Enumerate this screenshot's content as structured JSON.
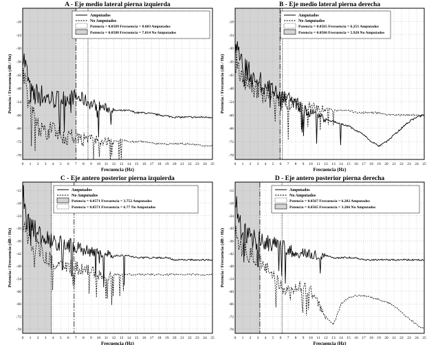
{
  "chart_data": [
    {
      "type": "line",
      "title": "A - Eje medio lateral pierna izquierda",
      "xlabel": "Frecuencia (Hz)",
      "ylabel": "Potencia / Frecuencia (dB / Hz)",
      "xlim": [
        0,
        25
      ],
      "ylim": [
        -80,
        -12
      ],
      "x_ticks": [
        0,
        1,
        2,
        3,
        4,
        5,
        6,
        7,
        8,
        9,
        10,
        11,
        12,
        13,
        14,
        15,
        16,
        17,
        18,
        19,
        20,
        21,
        22,
        23,
        24,
        25
      ],
      "y_ticks": [
        -18,
        -24,
        -30,
        -36,
        -42,
        -48,
        -54,
        -60,
        -66,
        -72,
        -78
      ],
      "legend": [
        "Amputados",
        "No Amputados"
      ],
      "annotations": [
        {
          "text": "Potencia = 0.0589   Frecuencia = 8.603 Amputados",
          "shade": false
        },
        {
          "text": "Potencia = 0.0588   Frecuencia = 7.014 No Amputados",
          "shade": true
        }
      ],
      "cutoff_lines": [
        {
          "x": 8.603,
          "group": "Amputados"
        },
        {
          "x": 7.014,
          "group": "No Amputados"
        }
      ],
      "series": [
        {
          "name": "Amputados",
          "style": "solid",
          "x": [
            0,
            0.5,
            1,
            1.5,
            2,
            3,
            4,
            5,
            6,
            7,
            8,
            9,
            10,
            11,
            12,
            13,
            14,
            15,
            16,
            18,
            20,
            22,
            24,
            25
          ],
          "y": [
            -32,
            -40,
            -50,
            -52,
            -50,
            -52,
            -53,
            -53,
            -52,
            -52,
            -53,
            -55,
            -56,
            -57,
            -58,
            -58,
            -58,
            -59,
            -59,
            -60,
            -61,
            -61,
            -61,
            -61
          ]
        },
        {
          "name": "No Amputados",
          "style": "dashed",
          "x": [
            0,
            0.5,
            1,
            1.5,
            2,
            3,
            4,
            5,
            6,
            7,
            8,
            9,
            10,
            11,
            12,
            13,
            14,
            15,
            16,
            18,
            20,
            22,
            24,
            25
          ],
          "y": [
            -40,
            -48,
            -58,
            -62,
            -64,
            -66,
            -68,
            -69,
            -70,
            -70,
            -71,
            -71,
            -72,
            -72,
            -72,
            -71,
            -72,
            -72,
            -72,
            -73,
            -73,
            -73,
            -74,
            -74
          ]
        }
      ]
    },
    {
      "type": "line",
      "title": "B - Eje medio lateral pierna derecha",
      "xlabel": "Frecuencia (Hz)",
      "ylabel": "Potencia / Frecuencia (dB / Hz)",
      "xlim": [
        0,
        25
      ],
      "ylim": [
        -80,
        -12
      ],
      "x_ticks": [
        0,
        1,
        2,
        3,
        4,
        5,
        6,
        7,
        8,
        9,
        10,
        11,
        12,
        13,
        14,
        15,
        16,
        17,
        18,
        19,
        20,
        21,
        22,
        23,
        24,
        25
      ],
      "y_ticks": [
        -18,
        -24,
        -30,
        -36,
        -42,
        -48,
        -54,
        -60,
        -66,
        -72,
        -78
      ],
      "legend": [
        "Amputados",
        "No Amputados"
      ],
      "annotations": [
        {
          "text": "Potencia = 0.0565   Frecuencia = 6.251 Amputados",
          "shade": false
        },
        {
          "text": "Potencia = 0.0566   Frecuencia = 5.928 No Amputados",
          "shade": true
        }
      ],
      "cutoff_lines": [
        {
          "x": 6.251,
          "group": "Amputados"
        },
        {
          "x": 5.928,
          "group": "No Amputados"
        }
      ],
      "series": [
        {
          "name": "Amputados",
          "style": "solid",
          "x": [
            0,
            0.5,
            1,
            2,
            3,
            4,
            5,
            6,
            7,
            8,
            9,
            10,
            11,
            12,
            13,
            14,
            15,
            16,
            17,
            18,
            19,
            20,
            21,
            22,
            23,
            24,
            25
          ],
          "y": [
            -28,
            -34,
            -38,
            -42,
            -44,
            -47,
            -50,
            -52,
            -53,
            -55,
            -57,
            -59,
            -61,
            -62,
            -63,
            -64,
            -65,
            -67,
            -69,
            -72,
            -74,
            -72,
            -69,
            -66,
            -63,
            -61,
            -60
          ]
        },
        {
          "name": "No Amputados",
          "style": "dashed",
          "x": [
            0,
            0.5,
            1,
            2,
            3,
            4,
            5,
            6,
            7,
            8,
            9,
            10,
            11,
            12,
            13,
            14,
            15,
            16,
            17,
            18,
            19,
            20,
            21,
            22,
            23,
            24,
            25
          ],
          "y": [
            -34,
            -40,
            -44,
            -47,
            -49,
            -51,
            -52,
            -53,
            -54,
            -55,
            -56,
            -56,
            -57,
            -57,
            -58,
            -58,
            -58,
            -59,
            -59,
            -59,
            -59,
            -60,
            -60,
            -60,
            -60,
            -60,
            -60
          ]
        }
      ]
    },
    {
      "type": "line",
      "title": "C - Eje antero posterior pierna izquierda",
      "xlabel": "Frecuencia (Hz)",
      "ylabel": "Potencia / Frecuencia (dB / Hz)",
      "xlim": [
        0,
        25
      ],
      "ylim": [
        -80,
        -8
      ],
      "x_ticks": [
        0,
        1,
        2,
        3,
        4,
        5,
        6,
        7,
        8,
        9,
        10,
        11,
        12,
        13,
        14,
        15,
        16,
        17,
        18,
        19,
        20,
        21,
        22,
        23,
        24,
        25
      ],
      "y_ticks": [
        -12,
        -18,
        -24,
        -30,
        -36,
        -42,
        -48,
        -54,
        -60,
        -66,
        -72,
        -78
      ],
      "legend": [
        "Amputados",
        "No Amputados"
      ],
      "annotations": [
        {
          "text": "Potencia = 0.0571   Frecuencia = 3.752 Amputados",
          "shade": true
        },
        {
          "text": "Potencia = 0.0571   Frecuencia = 6.77 No Amputados",
          "shade": false
        }
      ],
      "cutoff_lines": [
        {
          "x": 3.752,
          "group": "Amputados"
        },
        {
          "x": 6.77,
          "group": "No Amputados"
        }
      ],
      "series": [
        {
          "name": "Amputados",
          "style": "solid",
          "x": [
            0,
            0.3,
            0.6,
            1,
            2,
            3,
            4,
            5,
            6,
            7,
            8,
            9,
            10,
            11,
            12,
            13,
            14,
            15,
            16,
            17,
            18,
            19,
            20,
            21,
            22,
            23,
            24,
            25
          ],
          "y": [
            -12,
            -18,
            -26,
            -30,
            -32,
            -34,
            -36,
            -37,
            -38,
            -39,
            -40,
            -41,
            -42,
            -42,
            -43,
            -43,
            -43,
            -44,
            -44,
            -44,
            -44,
            -44,
            -45,
            -45,
            -45,
            -45,
            -45,
            -45
          ]
        },
        {
          "name": "No Amputados",
          "style": "dashed",
          "x": [
            0,
            0.3,
            0.6,
            1,
            2,
            3,
            4,
            5,
            6,
            7,
            8,
            9,
            10,
            11,
            12,
            13,
            14,
            15,
            16,
            17,
            18,
            19,
            20,
            21,
            22,
            23,
            24,
            25
          ],
          "y": [
            -26,
            -32,
            -36,
            -38,
            -40,
            -42,
            -45,
            -47,
            -48,
            -49,
            -50,
            -50,
            -52,
            -53,
            -52,
            -52,
            -52,
            -52,
            -52,
            -52,
            -52,
            -52,
            -52,
            -52,
            -52,
            -52,
            -52,
            -52
          ]
        }
      ]
    },
    {
      "type": "line",
      "title": "D - Eje antero posterior pierna derecha",
      "xlabel": "Frecuencia (Hz)",
      "ylabel": "Potencia / Frecuencia (dB / Hz)",
      "xlim": [
        0,
        25
      ],
      "ylim": [
        -80,
        -8
      ],
      "x_ticks": [
        0,
        1,
        2,
        3,
        4,
        5,
        6,
        7,
        8,
        9,
        10,
        11,
        12,
        13,
        14,
        15,
        16,
        17,
        18,
        19,
        20,
        21,
        22,
        23,
        24,
        25
      ],
      "y_ticks": [
        -12,
        -18,
        -24,
        -30,
        -36,
        -42,
        -48,
        -54,
        -60,
        -66,
        -72,
        -78
      ],
      "legend": [
        "Amputados",
        "No Amputados"
      ],
      "annotations": [
        {
          "text": "Potencia = 0.0567   Frecuencia = 6.202 Amputados",
          "shade": false
        },
        {
          "text": "Potencia = 0.0565   Frecuencia = 3.266 No Amputados",
          "shade": true
        }
      ],
      "cutoff_lines": [
        {
          "x": 6.202,
          "group": "Amputados"
        },
        {
          "x": 3.266,
          "group": "No Amputados"
        }
      ],
      "series": [
        {
          "name": "Amputados",
          "style": "solid",
          "x": [
            0,
            0.3,
            0.6,
            1,
            2,
            3,
            4,
            5,
            6,
            7,
            8,
            9,
            10,
            11,
            12,
            13,
            14,
            15,
            16,
            17,
            18,
            19,
            20,
            21,
            22,
            23,
            24,
            25
          ],
          "y": [
            -14,
            -20,
            -28,
            -32,
            -34,
            -36,
            -37,
            -38,
            -39,
            -40,
            -41,
            -42,
            -42,
            -43,
            -43,
            -44,
            -44,
            -44,
            -44,
            -45,
            -45,
            -45,
            -45,
            -45,
            -45,
            -45,
            -45,
            -45
          ]
        },
        {
          "name": "No Amputados",
          "style": "dashed",
          "x": [
            0,
            0.3,
            0.6,
            1,
            2,
            3,
            4,
            5,
            6,
            7,
            8,
            9,
            10,
            11,
            12,
            13,
            14,
            15,
            16,
            17,
            18,
            19,
            20,
            21,
            22,
            23,
            24,
            25
          ],
          "y": [
            -28,
            -34,
            -38,
            -40,
            -42,
            -44,
            -48,
            -54,
            -58,
            -60,
            -58,
            -58,
            -60,
            -66,
            -72,
            -76,
            -66,
            -63,
            -62,
            -62,
            -63,
            -64,
            -65,
            -67,
            -70,
            -73,
            -76,
            -78
          ]
        }
      ]
    }
  ]
}
